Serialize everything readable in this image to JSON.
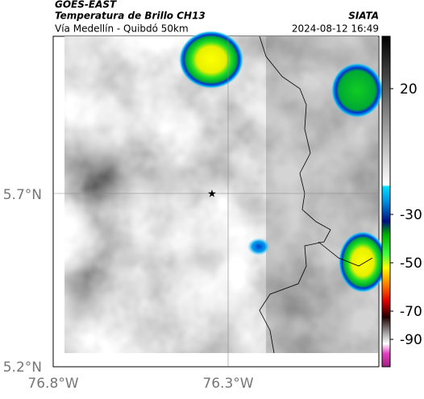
{
  "header": {
    "title": "GOES-EAST",
    "subtitle": "Temperatura de Brillo CH13",
    "route": "Vía Medellín - Quibdó 50km",
    "source": "SIATA",
    "datetime": "2024-08-12 16:49"
  },
  "map": {
    "lat_labels": [
      "5.7°N",
      "5.2°N"
    ],
    "lon_labels": [
      "76.8°W",
      "76.3°W"
    ]
  },
  "colorbar": {
    "ticks": [
      "20",
      "-30",
      "-50",
      "-70",
      "-90"
    ]
  }
}
